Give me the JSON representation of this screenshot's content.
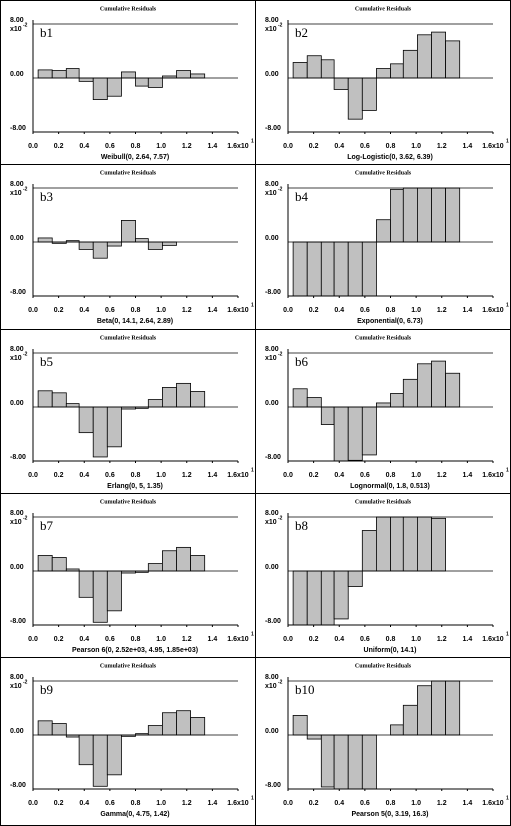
{
  "chart_data": [
    {
      "type": "histogram",
      "title": "Cumulative Residuals",
      "label": "b1",
      "x_label": "Weibull(0, 2.64, 7.57)",
      "y_multiplier": "x10",
      "y_exponent": "-2",
      "x_exponent": "1",
      "color": "#c0c0c0",
      "bins": [
        0.04,
        0.15,
        0.26,
        0.36,
        0.47,
        0.58,
        0.69,
        0.8,
        0.9,
        1.01,
        1.12,
        1.23,
        1.34
      ],
      "values": [
        1.2,
        1.1,
        1.4,
        -0.5,
        -3.2,
        -2.7,
        0.9,
        -1.2,
        -1.4,
        0.3,
        1.1,
        0.6
      ],
      "xlim": [
        0,
        1.6
      ],
      "ylim": [
        -8,
        8
      ],
      "xticks": [
        {
          "value": 0,
          "label": "0.0"
        },
        0.2,
        0.4,
        0.6,
        0.8,
        {
          "value": 1,
          "label": "1.0"
        },
        1.2,
        1.4,
        {
          "value": 1.6,
          "label": "1.6x10"
        }
      ],
      "yticks": [
        {
          "value": -8,
          "label": "-8.00"
        },
        {
          "value": 0,
          "label": "0.00"
        },
        {
          "value": 8,
          "label": "8.00"
        }
      ]
    },
    {
      "type": "histogram",
      "title": "Cumulative Residuals",
      "label": "b2",
      "x_label": "Log-Logistic(0, 3.62, 6.39)",
      "y_multiplier": "x10",
      "y_exponent": "-2",
      "x_exponent": "1",
      "color": "#c0c0c0",
      "bins": [
        0.04,
        0.15,
        0.26,
        0.36,
        0.47,
        0.58,
        0.69,
        0.8,
        0.9,
        1.01,
        1.12,
        1.23,
        1.34
      ],
      "values": [
        2.3,
        3.3,
        2.7,
        -1.7,
        -6.1,
        -4.8,
        1.4,
        2.1,
        4.1,
        6.4,
        6.8,
        5.5
      ],
      "xlim": [
        0,
        1.6
      ],
      "ylim": [
        -8,
        8
      ],
      "xticks": [
        {
          "value": 0,
          "label": "0.0"
        },
        0.2,
        0.4,
        0.6,
        0.8,
        {
          "value": 1,
          "label": "1.0"
        },
        1.2,
        1.4,
        {
          "value": 1.6,
          "label": "1.6x10"
        }
      ],
      "yticks": [
        {
          "value": -8,
          "label": "-8.00"
        },
        {
          "value": 0,
          "label": "0.00"
        },
        {
          "value": 8,
          "label": "8.00"
        }
      ]
    },
    {
      "type": "histogram",
      "title": "Cumulative Residuals",
      "label": "b3",
      "x_label": "Beta(0, 14.1, 2.64, 2.89)",
      "y_multiplier": "x10",
      "y_exponent": "-2",
      "x_exponent": "1",
      "color": "#c0c0c0",
      "bins": [
        0.04,
        0.15,
        0.26,
        0.36,
        0.47,
        0.58,
        0.69,
        0.8,
        0.9,
        1.01,
        1.12,
        1.23,
        1.34
      ],
      "values": [
        0.6,
        -0.2,
        0.2,
        -1.1,
        -2.4,
        -0.6,
        3.2,
        0.5,
        -1.1,
        -0.5,
        0,
        0
      ],
      "xlim": [
        0,
        1.6
      ],
      "ylim": [
        -8,
        8
      ],
      "xticks": [
        {
          "value": 0,
          "label": "0.0"
        },
        0.2,
        0.4,
        0.6,
        0.8,
        {
          "value": 1,
          "label": "1.0"
        },
        1.2,
        1.4,
        {
          "value": 1.6,
          "label": "1.6x10"
        }
      ],
      "yticks": [
        {
          "value": -8,
          "label": "-8.00"
        },
        {
          "value": 0,
          "label": "0.00"
        },
        {
          "value": 8,
          "label": "8.00"
        }
      ]
    },
    {
      "type": "histogram",
      "title": "Cumulative Residuals",
      "label": "b4",
      "x_label": "Exponential(0, 6.73)",
      "y_multiplier": "x10",
      "y_exponent": "-2",
      "x_exponent": "1",
      "color": "#c0c0c0",
      "bins": [
        0.04,
        0.15,
        0.26,
        0.36,
        0.47,
        0.58,
        0.69,
        0.8,
        0.9,
        1.01,
        1.12,
        1.23,
        1.34
      ],
      "values": [
        -8,
        -8,
        -8,
        -8,
        -8,
        -8,
        3.3,
        7.8,
        8,
        8,
        8,
        8
      ],
      "xlim": [
        0,
        1.6
      ],
      "ylim": [
        -8,
        8
      ],
      "xticks": [
        {
          "value": 0,
          "label": "0.0"
        },
        0.2,
        0.4,
        0.6,
        0.8,
        {
          "value": 1,
          "label": "1.0"
        },
        1.2,
        1.4,
        {
          "value": 1.6,
          "label": "1.6x10"
        }
      ],
      "yticks": [
        {
          "value": -8,
          "label": "-8.00"
        },
        {
          "value": 0,
          "label": "0.00"
        },
        {
          "value": 8,
          "label": "8.00"
        }
      ]
    },
    {
      "type": "histogram",
      "title": "Cumulative Residuals",
      "label": "b5",
      "x_label": "Erlang(0, 5, 1.35)",
      "y_multiplier": "x10",
      "y_exponent": "-2",
      "x_exponent": "1",
      "color": "#c0c0c0",
      "bins": [
        0.04,
        0.15,
        0.26,
        0.36,
        0.47,
        0.58,
        0.69,
        0.8,
        0.9,
        1.01,
        1.12,
        1.23,
        1.34
      ],
      "values": [
        2.4,
        2.1,
        0.5,
        -3.8,
        -7.4,
        -5.9,
        -0.3,
        -0.2,
        1.1,
        2.9,
        3.5,
        2.3
      ],
      "xlim": [
        0,
        1.6
      ],
      "ylim": [
        -8,
        8
      ],
      "xticks": [
        {
          "value": 0,
          "label": "0.0"
        },
        0.2,
        0.4,
        0.6,
        0.8,
        {
          "value": 1,
          "label": "1.0"
        },
        1.2,
        1.4,
        {
          "value": 1.6,
          "label": "1.6x10"
        }
      ],
      "yticks": [
        {
          "value": -8,
          "label": "-8.00"
        },
        {
          "value": 0,
          "label": "0.00"
        },
        {
          "value": 8,
          "label": "8.00"
        }
      ]
    },
    {
      "type": "histogram",
      "title": "Cumulative Residuals",
      "label": "b6",
      "x_label": "Lognormal(0, 1.8, 0.513)",
      "y_multiplier": "x10",
      "y_exponent": "-2",
      "x_exponent": "1",
      "color": "#c0c0c0",
      "bins": [
        0.04,
        0.15,
        0.26,
        0.36,
        0.47,
        0.58,
        0.69,
        0.8,
        0.9,
        1.01,
        1.12,
        1.23,
        1.34
      ],
      "values": [
        2.7,
        1.4,
        -2.6,
        -8,
        -7.9,
        -7.1,
        0.6,
        2.0,
        4.1,
        6.4,
        6.8,
        5.0
      ],
      "xlim": [
        0,
        1.6
      ],
      "ylim": [
        -8,
        8
      ],
      "xticks": [
        {
          "value": 0,
          "label": "0.0"
        },
        0.2,
        0.4,
        0.6,
        0.8,
        {
          "value": 1,
          "label": "1.0"
        },
        1.2,
        1.4,
        {
          "value": 1.6,
          "label": "1.6x10"
        }
      ],
      "yticks": [
        {
          "value": -8,
          "label": "-8.00"
        },
        {
          "value": 0,
          "label": "0.00"
        },
        {
          "value": 8,
          "label": "8.00"
        }
      ]
    },
    {
      "type": "histogram",
      "title": "Cumulative Residuals",
      "label": "b7",
      "x_label": "Pearson 6(0, 2.52e+03, 4.95, 1.85e+03)",
      "y_multiplier": "x10",
      "y_exponent": "-2",
      "x_exponent": "1",
      "color": "#c0c0c0",
      "bins": [
        0.04,
        0.15,
        0.26,
        0.36,
        0.47,
        0.58,
        0.69,
        0.8,
        0.9,
        1.01,
        1.12,
        1.23,
        1.34
      ],
      "values": [
        2.3,
        2.0,
        0.3,
        -3.9,
        -7.6,
        -5.9,
        -0.3,
        -0.2,
        1.1,
        3.0,
        3.5,
        2.3
      ],
      "xlim": [
        0,
        1.6
      ],
      "ylim": [
        -8,
        8
      ],
      "xticks": [
        {
          "value": 0,
          "label": "0.0"
        },
        0.2,
        0.4,
        0.6,
        0.8,
        {
          "value": 1,
          "label": "1.0"
        },
        1.2,
        1.4,
        {
          "value": 1.6,
          "label": "1.6x10"
        }
      ],
      "yticks": [
        {
          "value": -8,
          "label": "-8.00"
        },
        {
          "value": 0,
          "label": "0.00"
        },
        {
          "value": 8,
          "label": "8.00"
        }
      ]
    },
    {
      "type": "histogram",
      "title": "Cumulative Residuals",
      "label": "b8",
      "x_label": "Uniform(0, 14.1)",
      "y_multiplier": "x10",
      "y_exponent": "-2",
      "x_exponent": "1",
      "color": "#c0c0c0",
      "bins": [
        0.04,
        0.15,
        0.26,
        0.36,
        0.47,
        0.58,
        0.69,
        0.8,
        0.9,
        1.01,
        1.12,
        1.23,
        1.34
      ],
      "values": [
        -8,
        -8,
        -8,
        -7.1,
        -2.3,
        6.0,
        8,
        8,
        8,
        8,
        7.8,
        0
      ],
      "xlim": [
        0,
        1.6
      ],
      "ylim": [
        -8,
        8
      ],
      "xticks": [
        {
          "value": 0,
          "label": "0.0"
        },
        0.2,
        0.4,
        0.6,
        0.8,
        {
          "value": 1,
          "label": "1.0"
        },
        1.2,
        1.4,
        {
          "value": 1.6,
          "label": "1.6x10"
        }
      ],
      "yticks": [
        {
          "value": -8,
          "label": "-8.00"
        },
        {
          "value": 0,
          "label": "0.00"
        },
        {
          "value": 8,
          "label": "8.00"
        }
      ]
    },
    {
      "type": "histogram",
      "title": "Cumulative Residuals",
      "label": "b9",
      "x_label": "Gamma(0, 4.75, 1.42)",
      "y_multiplier": "x10",
      "y_exponent": "-2",
      "x_exponent": "1",
      "color": "#c0c0c0",
      "bins": [
        0.04,
        0.15,
        0.26,
        0.36,
        0.47,
        0.58,
        0.69,
        0.8,
        0.9,
        1.01,
        1.12,
        1.23,
        1.34
      ],
      "values": [
        2.1,
        1.7,
        -0.3,
        -4.4,
        -7.6,
        -5.9,
        -0.2,
        0.2,
        1.4,
        3.3,
        3.6,
        2.6
      ],
      "xlim": [
        0,
        1.6
      ],
      "ylim": [
        -8,
        8
      ],
      "xticks": [
        {
          "value": 0,
          "label": "0.0"
        },
        0.2,
        0.4,
        0.6,
        0.8,
        {
          "value": 1,
          "label": "1.0"
        },
        1.2,
        1.4,
        {
          "value": 1.6,
          "label": "1.6x10"
        }
      ],
      "yticks": [
        {
          "value": -8,
          "label": "-8.00"
        },
        {
          "value": 0,
          "label": "0.00"
        },
        {
          "value": 8,
          "label": "8.00"
        }
      ]
    },
    {
      "type": "histogram",
      "title": "Cumulative Residuals",
      "label": "b10",
      "x_label": "Pearson 5(0, 3.19, 16.3)",
      "y_multiplier": "x10",
      "y_exponent": "-2",
      "x_exponent": "1",
      "color": "#c0c0c0",
      "bins": [
        0.04,
        0.15,
        0.26,
        0.36,
        0.47,
        0.58,
        0.69,
        0.8,
        0.9,
        1.01,
        1.12,
        1.23,
        1.34
      ],
      "values": [
        2.9,
        -0.6,
        -7.7,
        -8,
        -8,
        -8,
        0,
        1.5,
        4.4,
        7.3,
        8,
        8
      ],
      "xlim": [
        0,
        1.6
      ],
      "ylim": [
        -8,
        8
      ],
      "xticks": [
        {
          "value": 0,
          "label": "0.0"
        },
        0.2,
        0.4,
        0.6,
        0.8,
        {
          "value": 1,
          "label": "1.0"
        },
        1.2,
        1.4,
        {
          "value": 1.6,
          "label": "1.6x10"
        }
      ],
      "yticks": [
        {
          "value": -8,
          "label": "-8.00"
        },
        {
          "value": 0,
          "label": "0.00"
        },
        {
          "value": 8,
          "label": "8.00"
        }
      ]
    }
  ]
}
